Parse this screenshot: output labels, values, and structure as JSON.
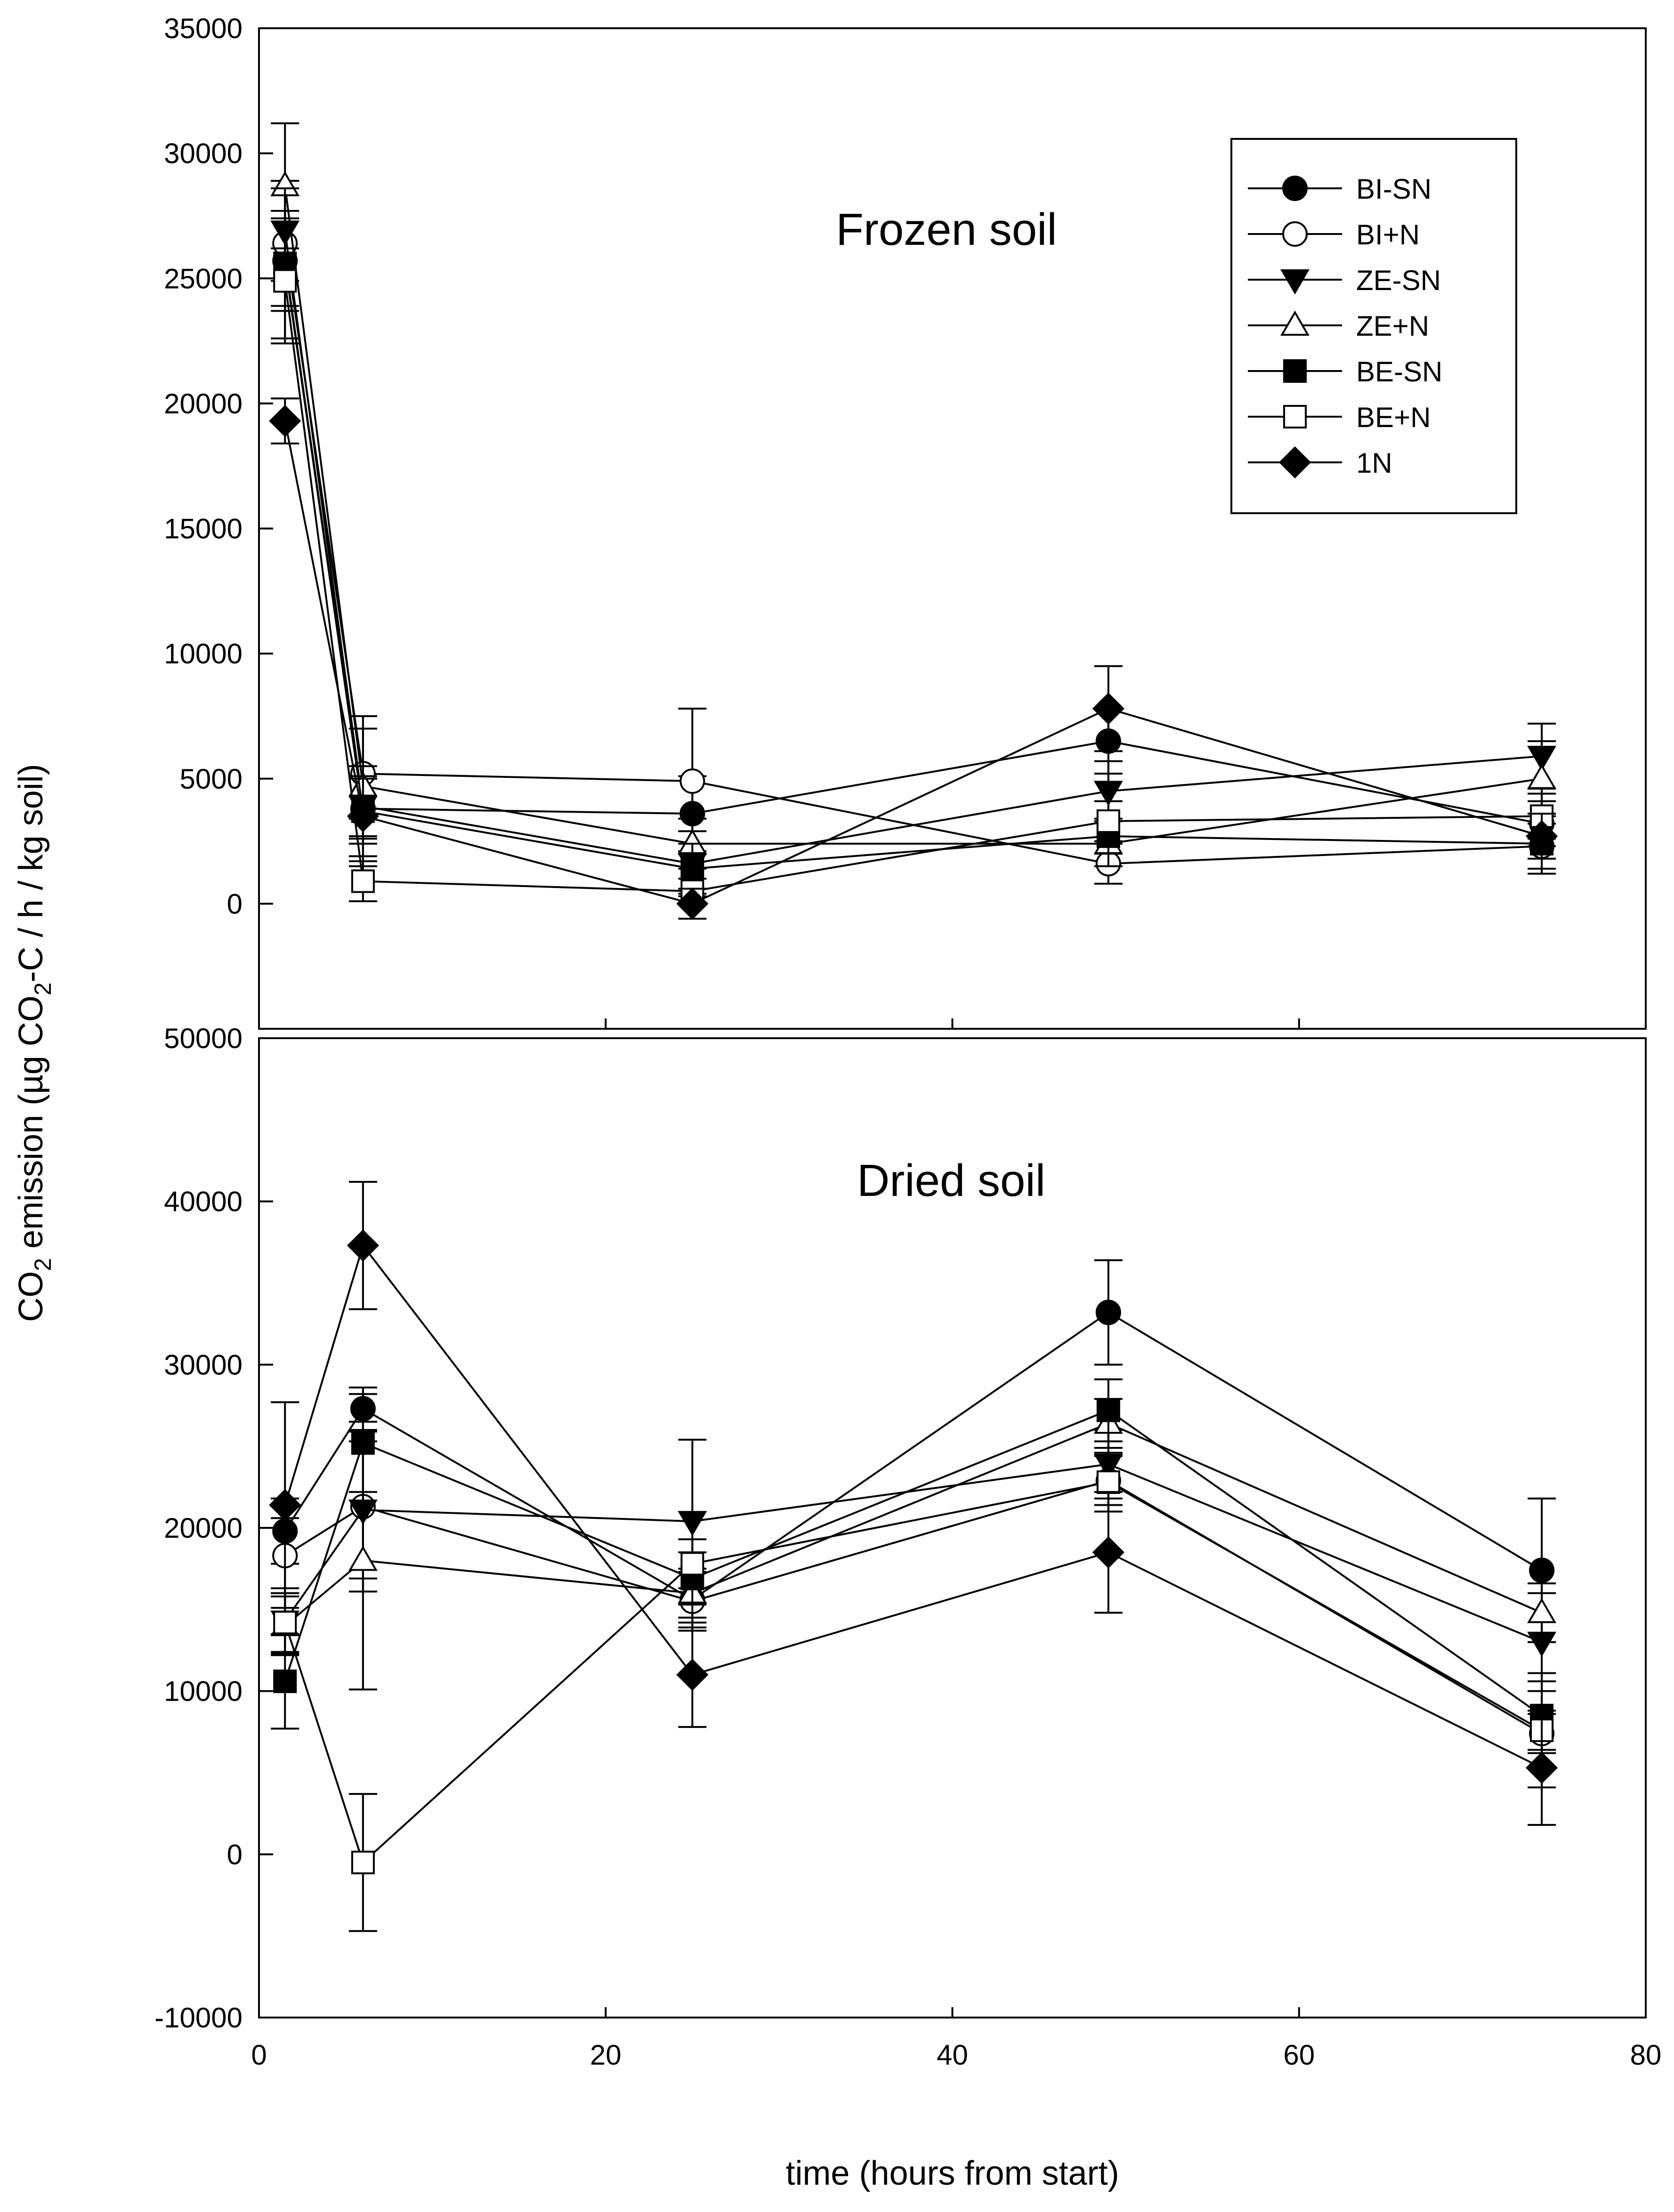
{
  "chart_data": {
    "type": "line",
    "x_axis": {
      "label": "time (hours from start)",
      "lim": [
        0,
        80
      ],
      "ticks": [
        0,
        20,
        40,
        60,
        80
      ]
    },
    "y_axis": {
      "label_parts": [
        "CO",
        "2",
        " emission (µg CO",
        "2",
        "-C / h / kg soil)"
      ]
    },
    "legend": {
      "position": "top-right of upper panel",
      "entries": [
        {
          "name": "BI-SN",
          "marker": "circle",
          "filled": true
        },
        {
          "name": "BI+N",
          "marker": "circle",
          "filled": false
        },
        {
          "name": "ZE-SN",
          "marker": "triangle-down",
          "filled": true
        },
        {
          "name": "ZE+N",
          "marker": "triangle-up",
          "filled": false
        },
        {
          "name": "BE-SN",
          "marker": "square",
          "filled": true
        },
        {
          "name": "BE+N",
          "marker": "square",
          "filled": false
        },
        {
          "name": "1N",
          "marker": "diamond",
          "filled": true
        }
      ]
    },
    "panels": [
      {
        "id": "frozen",
        "title": "Frozen soil",
        "ylim": [
          -5000,
          35000
        ],
        "yticks": [
          0,
          5000,
          10000,
          15000,
          20000,
          25000,
          30000,
          35000
        ],
        "x": [
          1.5,
          6,
          25,
          49,
          74
        ],
        "series": [
          {
            "name": "BI-SN",
            "values": [
              25700,
              3800,
              3600,
              6500,
              3200
            ],
            "errors": [
              2000,
              1200,
              1500,
              1300,
              900
            ]
          },
          {
            "name": "BI+N",
            "values": [
              26400,
              5200,
              4900,
              1600,
              2300
            ],
            "errors": [
              2500,
              1800,
              2900,
              800,
              900
            ]
          },
          {
            "name": "ZE-SN",
            "values": [
              26900,
              3900,
              1600,
              4500,
              5900
            ],
            "errors": [
              2000,
              1200,
              1300,
              1200,
              1300
            ]
          },
          {
            "name": "ZE+N",
            "values": [
              28700,
              4700,
              2400,
              2400,
              5000
            ],
            "errors": [
              2500,
              2800,
              1000,
              900,
              1500
            ]
          },
          {
            "name": "BE-SN",
            "values": [
              25600,
              3700,
              1400,
              2700,
              2400
            ],
            "errors": [
              3000,
              1300,
              1000,
              700,
              1200
            ]
          },
          {
            "name": "BE+N",
            "values": [
              24900,
              900,
              500,
              3300,
              3500
            ],
            "errors": [
              2500,
              800,
              500,
              800,
              900
            ]
          },
          {
            "name": "1N",
            "values": [
              19300,
              3500,
              0,
              7800,
              2700
            ],
            "errors": [
              900,
              2000,
              600,
              1700,
              900
            ]
          }
        ]
      },
      {
        "id": "dried",
        "title": "Dried soil",
        "ylim": [
          -10000,
          50000
        ],
        "yticks": [
          -10000,
          0,
          10000,
          20000,
          30000,
          40000,
          50000
        ],
        "x": [
          1.5,
          6,
          25,
          49,
          74
        ],
        "series": [
          {
            "name": "BI-SN",
            "values": [
              19800,
              27300,
              15600,
              33200,
              17400
            ],
            "errors": [
              2000,
              1300,
              1700,
              3200,
              4400
            ]
          },
          {
            "name": "BI+N",
            "values": [
              18300,
              21300,
              15500,
              22900,
              7400
            ],
            "errors": [
              2300,
              5200,
              1800,
              1500,
              1200
            ]
          },
          {
            "name": "ZE-SN",
            "values": [
              14300,
              21100,
              20400,
              23900,
              13000
            ],
            "errors": [
              2000,
              4200,
              5000,
              2100,
              3000
            ]
          },
          {
            "name": "ZE+N",
            "values": [
              14000,
              18000,
              16000,
              26400,
              14800
            ],
            "errors": [
              1800,
              7900,
              1500,
              1500,
              1800
            ]
          },
          {
            "name": "BE-SN",
            "values": [
              10600,
              25200,
              16900,
              27200,
              8500
            ],
            "errors": [
              2900,
              3000,
              1600,
              1900,
              2100
            ]
          },
          {
            "name": "BE+N",
            "values": [
              14200,
              -500,
              17800,
              22800,
              7600
            ],
            "errors": [
              1800,
              4200,
              1500,
              1800,
              3500
            ]
          },
          {
            "name": "1N",
            "values": [
              21400,
              37300,
              11000,
              18500,
              5300
            ],
            "errors": [
              6300,
              3900,
              3200,
              3700,
              3500
            ]
          }
        ]
      }
    ]
  }
}
